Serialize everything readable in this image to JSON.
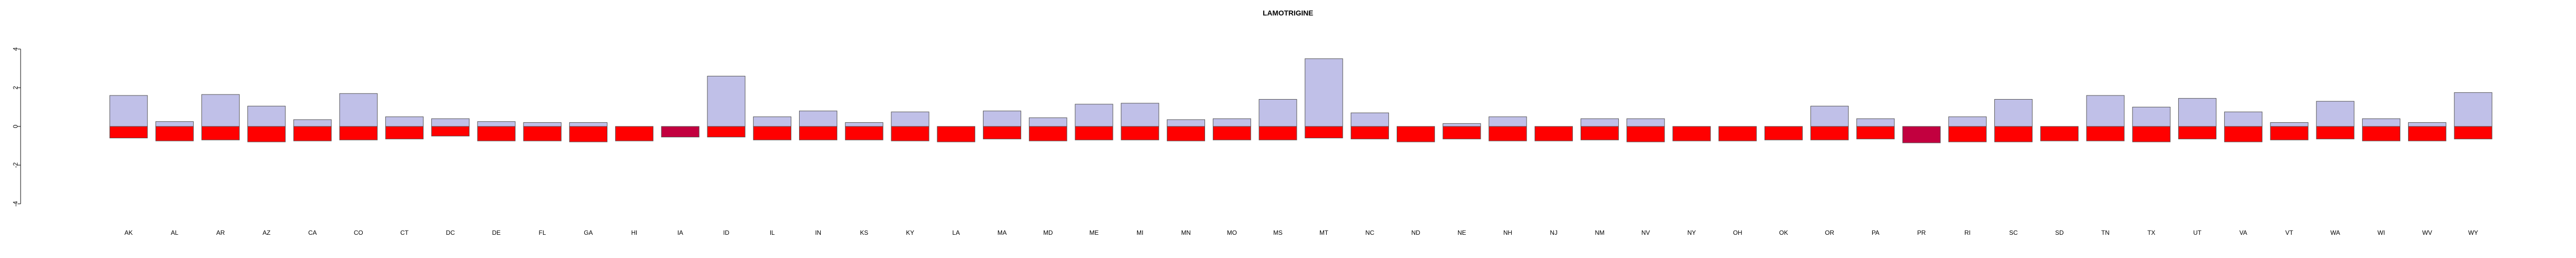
{
  "chart_data": {
    "type": "bar",
    "title": "LAMOTRIGINE",
    "xlabel": "",
    "ylabel": "",
    "ylim": [
      -4,
      4
    ],
    "yticks": [
      4,
      2,
      0,
      -2,
      -4
    ],
    "grid": false,
    "legend": "none",
    "categories": [
      "AK",
      "AL",
      "AR",
      "AZ",
      "CA",
      "CO",
      "CT",
      "DC",
      "DE",
      "FL",
      "GA",
      "HI",
      "IA",
      "ID",
      "IL",
      "IN",
      "KS",
      "KY",
      "LA",
      "MA",
      "MD",
      "ME",
      "MI",
      "MN",
      "MO",
      "MS",
      "MT",
      "NC",
      "ND",
      "NE",
      "NH",
      "NJ",
      "NM",
      "NV",
      "NY",
      "OH",
      "OK",
      "OR",
      "PA",
      "PR",
      "RI",
      "SC",
      "SD",
      "TN",
      "TX",
      "UT",
      "VA",
      "VT",
      "WA",
      "WI",
      "WV",
      "WY"
    ],
    "series": [
      {
        "role": "upper",
        "color": "#c0c0e8",
        "values": [
          1.6,
          0.25,
          1.65,
          1.05,
          0.35,
          1.7,
          0.5,
          0.4,
          0.25,
          0.2,
          0.2,
          0.0,
          0.0,
          2.6,
          0.5,
          0.8,
          0.2,
          0.75,
          0.0,
          0.8,
          0.45,
          1.15,
          1.2,
          0.35,
          0.4,
          1.4,
          3.5,
          0.7,
          0.0,
          0.15,
          0.5,
          0.0,
          0.4,
          0.4,
          0.0,
          0.0,
          0.0,
          1.05,
          0.4,
          0.0,
          0.5,
          1.4,
          0.0,
          1.6,
          1.0,
          1.45,
          0.75,
          0.2,
          1.3,
          0.4,
          0.2,
          1.75
        ]
      },
      {
        "role": "lower",
        "colors": [
          "#ff0000",
          "#ff0000",
          "#ff0000",
          "#ff0000",
          "#ff0000",
          "#ff0000",
          "#ff0000",
          "#ff0000",
          "#ff0000",
          "#ff0000",
          "#ff0000",
          "#ff0000",
          "#c2003f",
          "#ff0000",
          "#ff0000",
          "#ff0000",
          "#ff0000",
          "#ff0000",
          "#ff0000",
          "#ff0000",
          "#ff0000",
          "#ff0000",
          "#ff0000",
          "#ff0000",
          "#ff0000",
          "#ff0000",
          "#ff0000",
          "#ff0000",
          "#ff0000",
          "#ff0000",
          "#ff0000",
          "#ff0000",
          "#ff0000",
          "#ff0000",
          "#ff0000",
          "#ff0000",
          "#ff0000",
          "#ff0000",
          "#ff0000",
          "#c2003f",
          "#ff0000",
          "#ff0000",
          "#ff0000",
          "#ff0000",
          "#ff0000",
          "#ff0000",
          "#ff0000",
          "#ff0000",
          "#ff0000",
          "#ff0000",
          "#ff0000",
          "#ff0000"
        ],
        "values": [
          -0.6,
          -0.75,
          -0.7,
          -0.8,
          -0.75,
          -0.7,
          -0.65,
          -0.5,
          -0.75,
          -0.75,
          -0.8,
          -0.75,
          -0.55,
          -0.55,
          -0.7,
          -0.7,
          -0.7,
          -0.75,
          -0.8,
          -0.65,
          -0.75,
          -0.7,
          -0.7,
          -0.75,
          -0.7,
          -0.7,
          -0.6,
          -0.65,
          -0.8,
          -0.65,
          -0.75,
          -0.75,
          -0.7,
          -0.8,
          -0.75,
          -0.75,
          -0.7,
          -0.7,
          -0.65,
          -0.85,
          -0.8,
          -0.8,
          -0.75,
          -0.75,
          -0.8,
          -0.65,
          -0.8,
          -0.7,
          -0.65,
          -0.75,
          -0.75,
          -0.65
        ]
      }
    ]
  }
}
